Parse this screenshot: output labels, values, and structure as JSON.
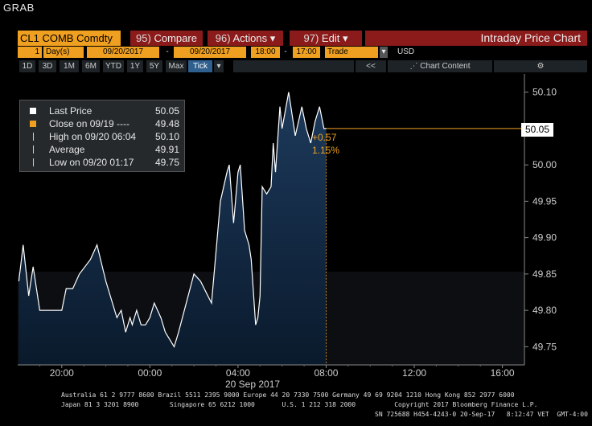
{
  "header": {
    "grab": "GRAB"
  },
  "toolbar": {
    "ticker": "CL1 COMB Comdty",
    "compare_num": "95)",
    "compare": "Compare",
    "actions_num": "96)",
    "actions": "Actions",
    "edit_num": "97)",
    "edit": "Edit",
    "title": "Intraday Price Chart"
  },
  "controls": {
    "days": "1",
    "days_unit": "Day(s)",
    "start_date": "09/20/2017",
    "dash": "-",
    "end_date": "09/20/2017",
    "start_time": "18:00",
    "end_time": "17:00",
    "source": "Trade",
    "currency": "USD"
  },
  "periods": [
    "1D",
    "3D",
    "1M",
    "6M",
    "YTD",
    "1Y",
    "5Y",
    "Max",
    "Tick"
  ],
  "period_active": "Tick",
  "chart_toolbar": {
    "collapse": "<<",
    "content": "Chart Content",
    "gear": "⚙"
  },
  "legend": [
    {
      "label": "Last Price",
      "value": "50.05",
      "color": "#ffffff",
      "marker": "square"
    },
    {
      "label": "Close on 09/19 ----",
      "value": "49.48",
      "color": "#f0a020",
      "marker": "square"
    },
    {
      "label": "High on 09/20 06:04",
      "value": "50.10",
      "color": "#cccccc",
      "marker": "high"
    },
    {
      "label": "Average",
      "value": "49.91",
      "color": "#cccccc",
      "marker": "avg"
    },
    {
      "label": "Low on 09/20 01:17",
      "value": "49.75",
      "color": "#cccccc",
      "marker": "low"
    }
  ],
  "change": {
    "abs": "+0.57",
    "pct": "1.15%"
  },
  "last_price_tag": "50.05",
  "date_label": "20 Sep 2017",
  "footer": {
    "line1": "Australia 61 2 9777 8600 Brazil 5511 2395 9000 Europe 44 20 7330 7500 Germany 49 69 9204 1210 Hong Kong 852 2977 6000",
    "line2": "Japan 81 3 3201 8900        Singapore 65 6212 1000       U.S. 1 212 318 2000          Copyright 2017 Bloomberg Finance L.P.",
    "line3": "SN 725688 H454-4243-0 20-Sep-17   8:12:47 VET  GMT-4:00"
  },
  "chart_data": {
    "type": "area",
    "title": "Intraday Price Chart",
    "xlabel": "20 Sep 2017",
    "ylabel": "",
    "x_ticks": [
      "20:00",
      "00:00",
      "04:00",
      "08:00",
      "12:00",
      "16:00"
    ],
    "x_tick_hours": [
      20,
      24,
      28,
      32,
      36,
      40
    ],
    "xlim_hours": [
      18,
      41
    ],
    "y_ticks": [
      49.75,
      49.8,
      49.85,
      49.9,
      49.95,
      50.0,
      50.05,
      50.1
    ],
    "ylim": [
      49.725,
      50.125
    ],
    "last_price": 50.05,
    "prev_close": 49.48,
    "grid": false,
    "legend_position": "top-left",
    "series": [
      {
        "name": "Last Price",
        "x_hours": [
          18.05,
          18.25,
          18.5,
          18.7,
          19.0,
          19.5,
          20.0,
          20.2,
          20.5,
          20.8,
          21.3,
          21.6,
          22.0,
          22.3,
          22.5,
          22.7,
          22.9,
          23.1,
          23.2,
          23.4,
          23.6,
          23.8,
          24.0,
          24.2,
          24.5,
          24.7,
          24.9,
          25.1,
          25.3,
          26.0,
          26.3,
          26.8,
          27.2,
          27.5,
          27.6,
          27.8,
          28.0,
          28.1,
          28.3,
          28.5,
          28.6,
          28.8,
          28.9,
          29.0,
          29.1,
          29.3,
          29.5,
          29.6,
          29.7,
          29.9,
          30.0,
          30.3,
          30.6,
          30.9,
          31.1,
          31.3,
          31.5,
          31.7,
          31.9,
          32.0
        ],
        "values": [
          49.84,
          49.89,
          49.82,
          49.86,
          49.8,
          49.8,
          49.8,
          49.83,
          49.83,
          49.85,
          49.87,
          49.89,
          49.84,
          49.81,
          49.79,
          49.8,
          49.77,
          49.79,
          49.78,
          49.8,
          49.78,
          49.78,
          49.79,
          49.81,
          49.79,
          49.77,
          49.76,
          49.75,
          49.77,
          49.85,
          49.84,
          49.81,
          49.95,
          49.99,
          50.0,
          49.92,
          49.99,
          50.0,
          49.91,
          49.89,
          49.87,
          49.78,
          49.79,
          49.82,
          49.97,
          49.96,
          49.97,
          50.03,
          49.99,
          50.08,
          50.05,
          50.1,
          50.04,
          50.08,
          50.05,
          50.03,
          50.06,
          50.08,
          50.05,
          50.05
        ]
      }
    ]
  }
}
